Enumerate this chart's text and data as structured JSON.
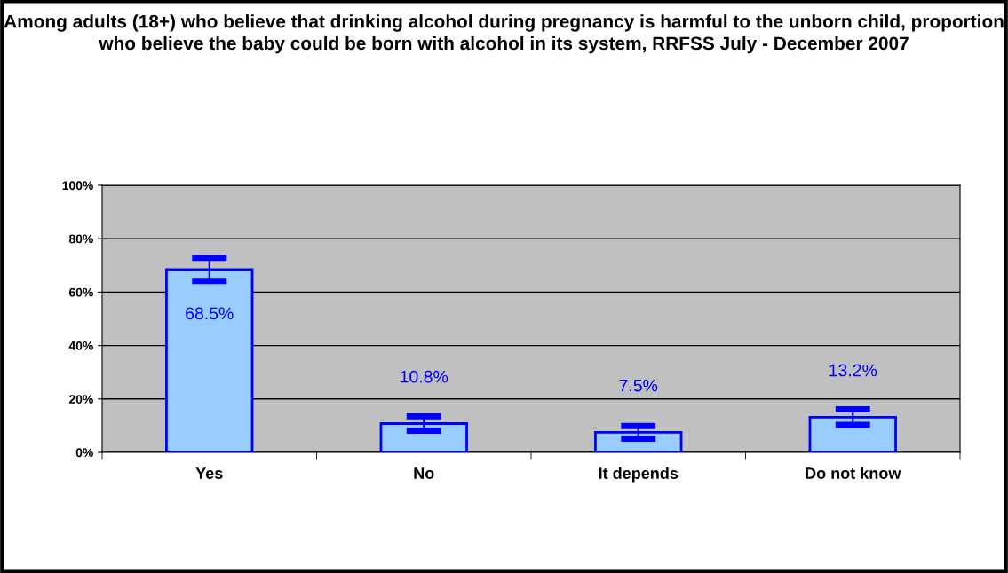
{
  "chart_data": {
    "type": "bar",
    "title": "Among adults (18+) who believe that drinking alcohol during pregnancy is harmful to the unborn child, proportion who believe the baby could be born with alcohol in its system, RRFSS July - December 2007",
    "categories": [
      "Yes",
      "No",
      "It depends",
      "Do not know"
    ],
    "values": [
      68.5,
      10.8,
      7.5,
      13.2
    ],
    "errors": [
      4.3,
      2.7,
      2.4,
      2.9
    ],
    "value_labels": [
      "68.5%",
      "10.8%",
      "7.5%",
      "13.2%"
    ],
    "color": "#99ccff",
    "ylim": [
      0,
      100
    ],
    "yticks": [
      {
        "value": 0,
        "label": "0%"
      },
      {
        "value": 20,
        "label": "20%"
      },
      {
        "value": 40,
        "label": "40%"
      },
      {
        "value": 60,
        "label": "60%"
      },
      {
        "value": 80,
        "label": "80%"
      },
      {
        "value": 100,
        "label": "100%"
      }
    ],
    "grid": "y"
  }
}
